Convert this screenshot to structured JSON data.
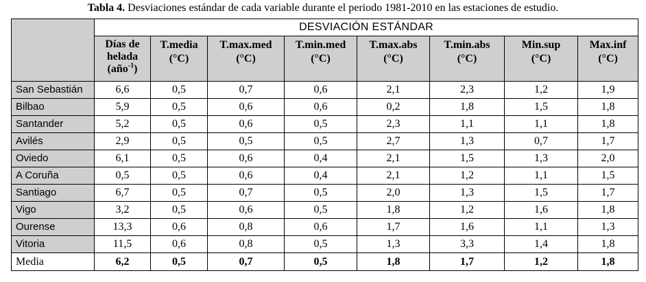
{
  "caption": {
    "bold": "Tabla 4.",
    "text": " Desviaciones estándar  de cada variable durante el periodo 1981-2010 en las estaciones de estudio."
  },
  "super_header": "DESVIACIÓN ESTÁNDAR",
  "columns": [
    {
      "line1": "Días de",
      "line2": "helada",
      "line3": "(año",
      "sup": "-1",
      "close": ")"
    },
    {
      "line1": "T.media",
      "line2": "(°C)"
    },
    {
      "line1": "T.max.med",
      "line2": "(°C)"
    },
    {
      "line1": "T.min.med",
      "line2": "(°C)"
    },
    {
      "line1": "T.max.abs",
      "line2": "(°C)"
    },
    {
      "line1": "T.min.abs",
      "line2": "(°C)"
    },
    {
      "line1": "Min.sup",
      "line2": "(°C)"
    },
    {
      "line1": "Max.inf",
      "line2": "(°C)"
    }
  ],
  "rows": [
    {
      "station": "San Sebastián",
      "values": [
        "6,6",
        "0,5",
        "0,7",
        "0,6",
        "2,1",
        "2,3",
        "1,2",
        "1,9"
      ]
    },
    {
      "station": "Bilbao",
      "values": [
        "5,9",
        "0,5",
        "0,6",
        "0,6",
        "0,2",
        "1,8",
        "1,5",
        "1,8"
      ]
    },
    {
      "station": "Santander",
      "values": [
        "5,2",
        "0,5",
        "0,6",
        "0,5",
        "2,3",
        "1,1",
        "1,1",
        "1,8"
      ]
    },
    {
      "station": "Avilés",
      "values": [
        "2,9",
        "0,5",
        "0,5",
        "0,5",
        "2,7",
        "1,3",
        "0,7",
        "1,7"
      ]
    },
    {
      "station": "Oviedo",
      "values": [
        "6,1",
        "0,5",
        "0,6",
        "0,4",
        "2,1",
        "1,5",
        "1,3",
        "2,0"
      ]
    },
    {
      "station": "A Coruña",
      "values": [
        "0,5",
        "0,5",
        "0,6",
        "0,4",
        "2,1",
        "1,2",
        "1,1",
        "1,5"
      ]
    },
    {
      "station": "Santiago",
      "values": [
        "6,7",
        "0,5",
        "0,7",
        "0,5",
        "2,0",
        "1,3",
        "1,5",
        "1,7"
      ]
    },
    {
      "station": "Vigo",
      "values": [
        "3,2",
        "0,5",
        "0,6",
        "0,5",
        "1,8",
        "1,2",
        "1,6",
        "1,8"
      ]
    },
    {
      "station": "Ourense",
      "values": [
        "13,3",
        "0,6",
        "0,8",
        "0,6",
        "1,7",
        "1,6",
        "1,1",
        "1,3"
      ]
    },
    {
      "station": "Vitoria",
      "values": [
        "11,5",
        "0,6",
        "0,8",
        "0,5",
        "1,3",
        "3,3",
        "1,4",
        "1,8"
      ]
    }
  ],
  "mean_row": {
    "station": "Media",
    "values": [
      "6,2",
      "0,5",
      "0,7",
      "0,5",
      "1,8",
      "1,7",
      "1,2",
      "1,8"
    ]
  }
}
